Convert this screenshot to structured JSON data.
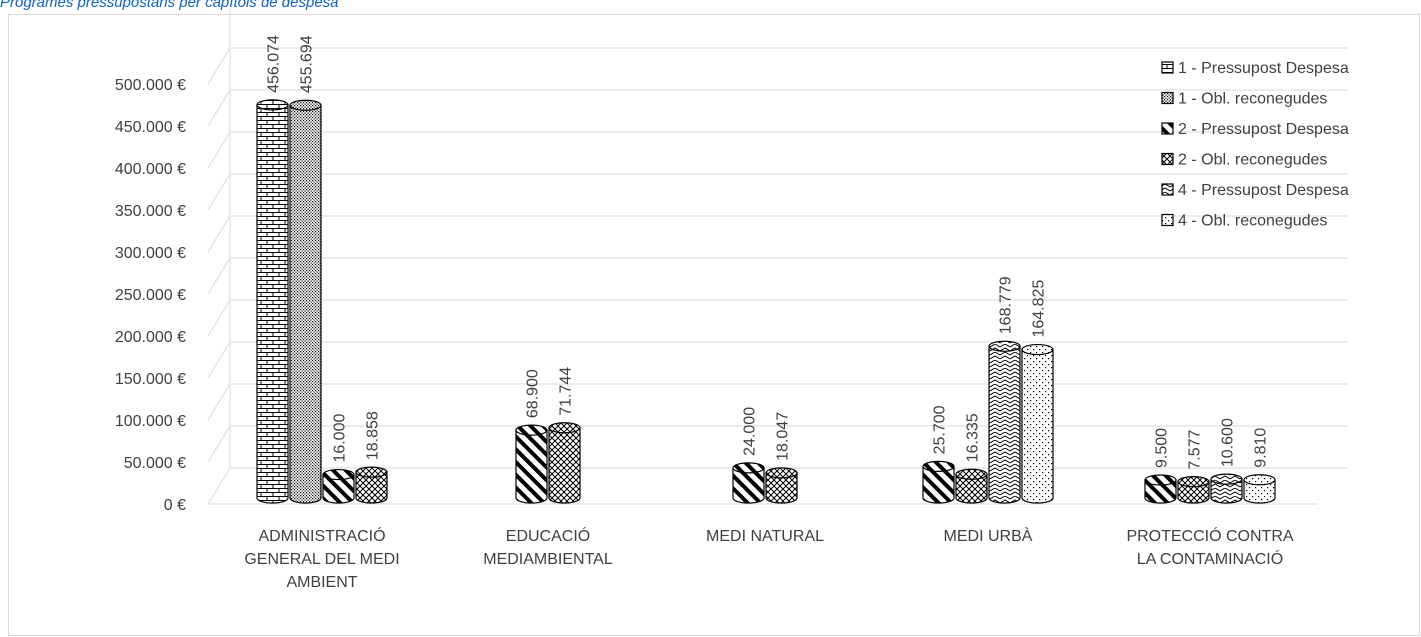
{
  "title": "Programes pressupostaris per capítols de despesa",
  "chart_data": {
    "type": "bar",
    "style": "3d-cylinder, black-and-white patterns",
    "categories": [
      [
        "ADMINISTRACIÓ",
        "GENERAL DEL MEDI",
        "AMBIENT"
      ],
      [
        "EDUCACIÓ",
        "MEDIAMBIENTAL"
      ],
      [
        "MEDI NATURAL"
      ],
      [
        "MEDI URBÀ"
      ],
      [
        "PROTECCIÓ CONTRA",
        "LA CONTAMINACIÓ"
      ]
    ],
    "series": [
      {
        "name": "1 - Pressupost Despesa",
        "pattern": "brick",
        "values": [
          456074,
          null,
          null,
          null,
          null
        ],
        "labels": [
          "456.074",
          null,
          null,
          null,
          null
        ]
      },
      {
        "name": "1 - Obl. reconegudes",
        "pattern": "dots",
        "values": [
          455694,
          null,
          null,
          null,
          null
        ],
        "labels": [
          "455.694",
          null,
          null,
          null,
          null
        ]
      },
      {
        "name": "2 - Pressupost Despesa",
        "pattern": "diagonal",
        "values": [
          16000,
          68900,
          24000,
          25700,
          9500
        ],
        "labels": [
          "16.000",
          "68.900",
          "24.000",
          "25.700",
          "9.500"
        ]
      },
      {
        "name": "2 - Obl. reconegudes",
        "pattern": "crosshatch",
        "values": [
          18858,
          71744,
          18047,
          16335,
          7577
        ],
        "labels": [
          "18.858",
          "71.744",
          "18.047",
          "16.335",
          "7.577"
        ]
      },
      {
        "name": "4 - Pressupost Despesa",
        "pattern": "zigzag",
        "values": [
          null,
          null,
          null,
          168779,
          10600
        ],
        "labels": [
          null,
          null,
          null,
          "168.779",
          "10.600"
        ]
      },
      {
        "name": "4 - Obl. reconegudes",
        "pattern": "sparse-dots",
        "values": [
          null,
          null,
          null,
          164825,
          9810
        ],
        "labels": [
          null,
          null,
          null,
          "164.825",
          "9.810"
        ]
      }
    ],
    "y_ticks": [
      "0 €",
      "50.000 €",
      "100.000 €",
      "150.000 €",
      "200.000 €",
      "250.000 €",
      "300.000 €",
      "350.000 €",
      "400.000 €",
      "450.000 €",
      "500.000 €"
    ],
    "ylim": [
      0,
      500000
    ],
    "grid": true,
    "legend_position": "right"
  }
}
